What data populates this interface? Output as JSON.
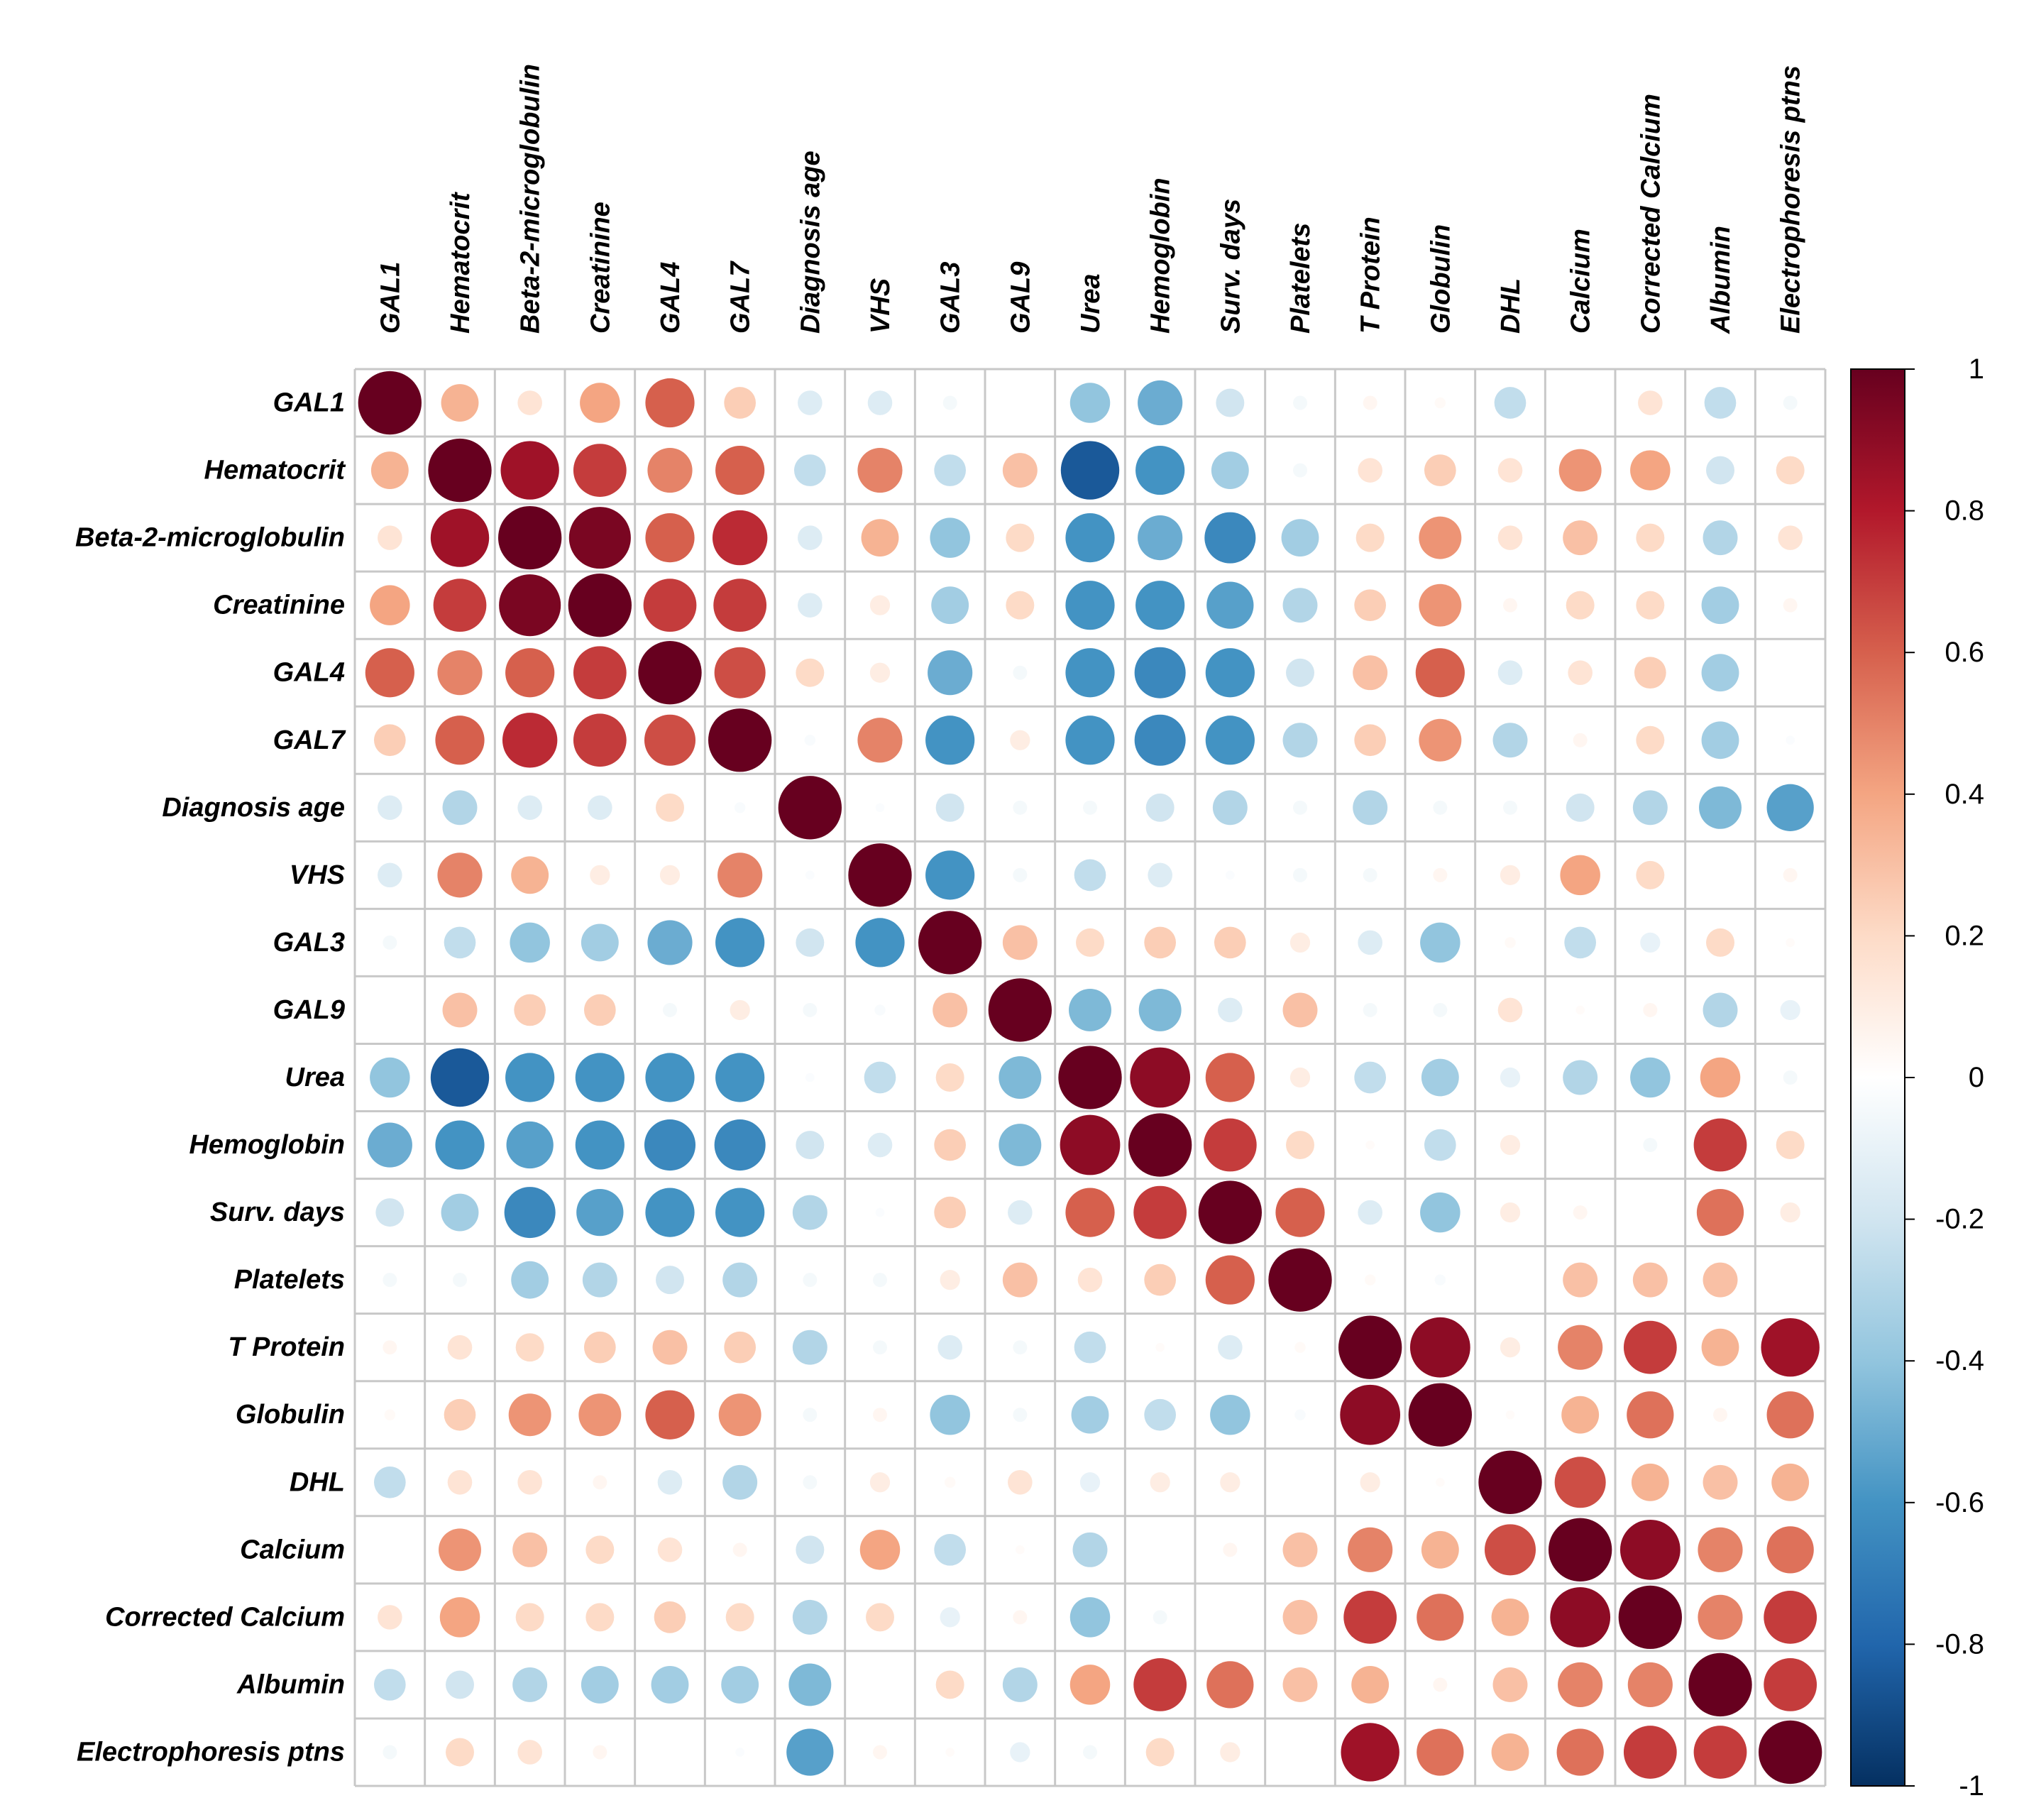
{
  "chart_data": {
    "type": "heatmap",
    "style": "correlation-circles",
    "variables": [
      "GAL1",
      "Hematocrit",
      "Beta-2-microglobulin",
      "Creatinine",
      "GAL4",
      "GAL7",
      "Diagnosis age",
      "VHS",
      "GAL3",
      "GAL9",
      "Urea",
      "Hemoglobin",
      "Surv. days",
      "Platelets",
      "T Protein",
      "Globulin",
      "DHL",
      "Calcium",
      "Corrected Calcium",
      "Albumin",
      "Electrophoresis ptns"
    ],
    "matrix": [
      [
        1,
        0.35,
        0.15,
        0.4,
        0.6,
        0.25,
        -0.15,
        -0.15,
        -0.05,
        0,
        -0.4,
        -0.5,
        -0.2,
        -0.05,
        0.05,
        0.03,
        -0.25,
        0,
        0.15,
        -0.25,
        -0.05
      ],
      [
        0.35,
        1,
        0.85,
        0.7,
        0.5,
        0.6,
        -0.25,
        0.5,
        -0.25,
        0.3,
        -0.85,
        -0.6,
        -0.35,
        -0.05,
        0.15,
        0.25,
        0.15,
        0.45,
        0.4,
        -0.2,
        0.2
      ],
      [
        0.15,
        0.85,
        1,
        0.95,
        0.6,
        0.75,
        -0.15,
        0.35,
        -0.4,
        0.2,
        -0.6,
        -0.5,
        -0.65,
        -0.35,
        0.2,
        0.45,
        0.15,
        0.3,
        0.2,
        -0.3,
        0.15
      ],
      [
        0.4,
        0.7,
        0.95,
        1,
        0.7,
        0.7,
        -0.15,
        0.1,
        -0.35,
        0.2,
        -0.6,
        -0.6,
        -0.55,
        -0.3,
        0.25,
        0.45,
        0.05,
        0.2,
        0.2,
        -0.35,
        0.05
      ],
      [
        0.6,
        0.5,
        0.6,
        0.7,
        1,
        0.65,
        0.2,
        0.1,
        -0.5,
        -0.05,
        -0.6,
        -0.65,
        -0.6,
        -0.2,
        0.3,
        0.6,
        -0.15,
        0.15,
        0.25,
        -0.35,
        0
      ],
      [
        0.25,
        0.6,
        0.75,
        0.7,
        0.65,
        1,
        -0.03,
        0.5,
        -0.6,
        0.1,
        -0.6,
        -0.65,
        -0.6,
        -0.3,
        0.25,
        0.45,
        -0.3,
        0.05,
        0.2,
        -0.35,
        -0.02
      ],
      [
        -0.15,
        -0.3,
        -0.15,
        -0.15,
        0.2,
        -0.03,
        1,
        -0.02,
        -0.2,
        -0.05,
        -0.05,
        -0.2,
        -0.3,
        -0.05,
        -0.3,
        -0.05,
        -0.05,
        -0.2,
        -0.3,
        -0.45,
        -0.55
      ],
      [
        -0.15,
        0.5,
        0.35,
        0.1,
        0.1,
        0.5,
        -0.02,
        1,
        -0.6,
        -0.05,
        -0.25,
        -0.15,
        -0.02,
        -0.05,
        -0.05,
        0.05,
        0.1,
        0.4,
        0.2,
        0,
        0.05
      ],
      [
        -0.05,
        -0.25,
        -0.4,
        -0.35,
        -0.5,
        -0.6,
        -0.2,
        -0.6,
        1,
        0.3,
        0.2,
        0.25,
        0.25,
        0.1,
        -0.15,
        -0.4,
        0.03,
        -0.25,
        -0.1,
        0.2,
        0.02
      ],
      [
        0,
        0.3,
        0.25,
        0.25,
        -0.05,
        0.1,
        -0.05,
        -0.03,
        0.3,
        1,
        -0.45,
        -0.45,
        -0.15,
        0.3,
        -0.05,
        -0.05,
        0.15,
        0.02,
        0.05,
        -0.3,
        -0.1
      ],
      [
        -0.4,
        -0.85,
        -0.6,
        -0.6,
        -0.6,
        -0.6,
        -0.02,
        -0.25,
        0.2,
        -0.45,
        1,
        0.9,
        0.6,
        0.1,
        -0.25,
        -0.35,
        -0.1,
        -0.3,
        -0.4,
        0.4,
        -0.05
      ],
      [
        -0.5,
        -0.6,
        -0.55,
        -0.6,
        -0.65,
        -0.65,
        -0.2,
        -0.15,
        0.25,
        -0.45,
        0.9,
        1,
        0.7,
        0.2,
        0.02,
        -0.25,
        0.1,
        0,
        -0.05,
        0.7,
        0.2
      ],
      [
        -0.2,
        -0.35,
        -0.65,
        -0.55,
        -0.6,
        -0.6,
        -0.3,
        -0.02,
        0.25,
        -0.15,
        0.6,
        0.7,
        1,
        0.6,
        -0.15,
        -0.4,
        0.1,
        0.05,
        0,
        0.55,
        0.1
      ],
      [
        -0.05,
        -0.05,
        -0.35,
        -0.3,
        -0.2,
        -0.3,
        -0.05,
        -0.05,
        0.1,
        0.3,
        0.15,
        0.25,
        0.6,
        1,
        0.03,
        -0.03,
        0,
        0.3,
        0.3,
        0.3,
        0
      ],
      [
        0.05,
        0.15,
        0.2,
        0.25,
        0.3,
        0.25,
        -0.3,
        -0.05,
        -0.15,
        -0.05,
        -0.25,
        0.02,
        -0.15,
        0.03,
        1,
        0.9,
        0.1,
        0.5,
        0.7,
        0.35,
        0.85
      ],
      [
        0.03,
        0.25,
        0.45,
        0.45,
        0.6,
        0.45,
        -0.05,
        0.05,
        -0.4,
        -0.05,
        -0.35,
        -0.25,
        -0.4,
        -0.03,
        0.9,
        1,
        0.02,
        0.35,
        0.55,
        0.05,
        0.55
      ],
      [
        -0.25,
        0.15,
        0.15,
        0.05,
        -0.15,
        -0.3,
        -0.05,
        0.1,
        0.03,
        0.15,
        -0.1,
        0.1,
        0.1,
        0,
        0.1,
        0.02,
        1,
        0.65,
        0.35,
        0.3,
        0.35
      ],
      [
        0,
        0.45,
        0.3,
        0.2,
        0.15,
        0.05,
        -0.2,
        0.4,
        -0.25,
        0.02,
        -0.3,
        0,
        0.05,
        0.3,
        0.5,
        0.35,
        0.65,
        1,
        0.9,
        0.5,
        0.55
      ],
      [
        0.15,
        0.4,
        0.2,
        0.2,
        0.25,
        0.2,
        -0.3,
        0.2,
        -0.1,
        0.05,
        -0.4,
        -0.05,
        0,
        0.3,
        0.7,
        0.55,
        0.35,
        0.9,
        1,
        0.5,
        0.7
      ],
      [
        -0.25,
        -0.2,
        -0.3,
        -0.35,
        -0.35,
        -0.35,
        -0.45,
        0,
        0.2,
        -0.3,
        0.4,
        0.7,
        0.55,
        0.3,
        0.35,
        0.05,
        0.3,
        0.5,
        0.5,
        1,
        0.7
      ],
      [
        -0.05,
        0.2,
        0.15,
        0.05,
        0,
        -0.02,
        -0.55,
        0.05,
        0.02,
        -0.1,
        -0.05,
        0.2,
        0.1,
        0,
        0.85,
        0.55,
        0.35,
        0.55,
        0.7,
        0.7,
        1
      ]
    ],
    "colorbar": {
      "ticks": [
        "1",
        "0.8",
        "0.6",
        "0.4",
        "0.2",
        "0",
        "-0.2",
        "-0.4",
        "-0.6",
        "-0.8",
        "-1"
      ],
      "range": [
        -1,
        1
      ]
    },
    "colors": {
      "neg_strong": "#053061",
      "neg": "#2166ac",
      "neg_mid": "#4393c3",
      "neg_light": "#92c5de",
      "neg_pale": "#d1e5f0",
      "zero": "#ffffff",
      "pos_pale": "#fddbc7",
      "pos_light": "#f4a582",
      "pos_mid": "#d6604d",
      "pos": "#b2182b",
      "pos_strong": "#67001f",
      "grid": "#c8c8c8"
    }
  }
}
